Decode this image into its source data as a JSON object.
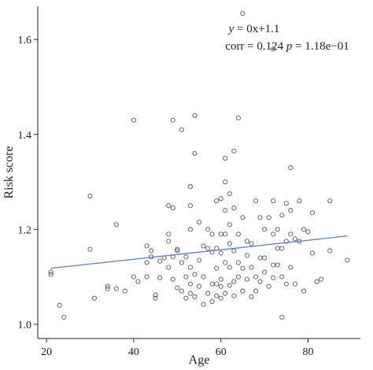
{
  "chart_data": {
    "type": "scatter",
    "xlabel": "Age",
    "ylabel": "Risk score",
    "xlim": [
      18,
      92
    ],
    "ylim": [
      0.97,
      1.67
    ],
    "xticks": [
      "20",
      "40",
      "60",
      "80"
    ],
    "yticks": [
      "1.0",
      "1.2",
      "1.4",
      "1.6"
    ],
    "grid": false,
    "colors": {
      "points": "#555555",
      "line": "#5b7fbf",
      "axis": "#222222"
    },
    "annotation": {
      "line1_y": "y",
      "line1_rest": " = 0x+1.1",
      "line2_corr": "corr = 0.124 ",
      "line2_p": "p",
      "line2_rest": " = 1.18e−01"
    },
    "fit_line": {
      "x": [
        21,
        89
      ],
      "y": [
        1.118,
        1.186
      ]
    },
    "points": [
      [
        21,
        1.105
      ],
      [
        21,
        1.11
      ],
      [
        23,
        1.04
      ],
      [
        24,
        1.015
      ],
      [
        30,
        1.27
      ],
      [
        30,
        1.158
      ],
      [
        31,
        1.055
      ],
      [
        34,
        1.08
      ],
      [
        34,
        1.075
      ],
      [
        36,
        1.21
      ],
      [
        36,
        1.075
      ],
      [
        38,
        1.07
      ],
      [
        40,
        1.43
      ],
      [
        40,
        1.1
      ],
      [
        41,
        1.09
      ],
      [
        43,
        1.165
      ],
      [
        43,
        1.13
      ],
      [
        43,
        1.1
      ],
      [
        44,
        1.142
      ],
      [
        44,
        1.155
      ],
      [
        45,
        1.062
      ],
      [
        45,
        1.055
      ],
      [
        46,
        1.133
      ],
      [
        46,
        1.098
      ],
      [
        47,
        1.14
      ],
      [
        48,
        1.19
      ],
      [
        48,
        1.175
      ],
      [
        48,
        1.25
      ],
      [
        48,
        1.12
      ],
      [
        49,
        1.43
      ],
      [
        49,
        1.245
      ],
      [
        49,
        1.142
      ],
      [
        49,
        1.095
      ],
      [
        50,
        1.158
      ],
      [
        50,
        1.155
      ],
      [
        50,
        1.077
      ],
      [
        51,
        1.13
      ],
      [
        51,
        1.41
      ],
      [
        51,
        1.07
      ],
      [
        52,
        1.142
      ],
      [
        52,
        1.1
      ],
      [
        52,
        1.055
      ],
      [
        53,
        1.29
      ],
      [
        53,
        1.25
      ],
      [
        53,
        1.2
      ],
      [
        53,
        1.12
      ],
      [
        53,
        1.085
      ],
      [
        53,
        1.065
      ],
      [
        54,
        1.44
      ],
      [
        54,
        1.36
      ],
      [
        54,
        1.105
      ],
      [
        54,
        1.058
      ],
      [
        55,
        1.215
      ],
      [
        55,
        1.135
      ],
      [
        55,
        1.08
      ],
      [
        56,
        1.165
      ],
      [
        56,
        1.1
      ],
      [
        56,
        1.042
      ],
      [
        57,
        1.2
      ],
      [
        57,
        1.16
      ],
      [
        57,
        1.065
      ],
      [
        58,
        1.152
      ],
      [
        58,
        1.085
      ],
      [
        58,
        1.048
      ],
      [
        59,
        1.26
      ],
      [
        59,
        1.16
      ],
      [
        59,
        1.118
      ],
      [
        59,
        1.085
      ],
      [
        59,
        1.06
      ],
      [
        60,
        1.265
      ],
      [
        60,
        1.19
      ],
      [
        60,
        1.15
      ],
      [
        60,
        1.095
      ],
      [
        60,
        1.08
      ],
      [
        60,
        1.055
      ],
      [
        61,
        1.35
      ],
      [
        61,
        1.3
      ],
      [
        61,
        1.24
      ],
      [
        61,
        1.19
      ],
      [
        61,
        1.13
      ],
      [
        61,
        1.065
      ],
      [
        62,
        1.275
      ],
      [
        62,
        1.17
      ],
      [
        62,
        1.12
      ],
      [
        62,
        1.082
      ],
      [
        63,
        1.365
      ],
      [
        63,
        1.245
      ],
      [
        63,
        1.155
      ],
      [
        63,
        1.09
      ],
      [
        63,
        1.06
      ],
      [
        64,
        1.435
      ],
      [
        64,
        1.19
      ],
      [
        64,
        1.13
      ],
      [
        64,
        1.1
      ],
      [
        65,
        1.655
      ],
      [
        65,
        1.225
      ],
      [
        65,
        1.118
      ],
      [
        65,
        1.07
      ],
      [
        66,
        1.175
      ],
      [
        66,
        1.095
      ],
      [
        67,
        1.17
      ],
      [
        67,
        1.12
      ],
      [
        67,
        1.058
      ],
      [
        68,
        1.26
      ],
      [
        68,
        1.1
      ],
      [
        68,
        1.07
      ],
      [
        69,
        1.225
      ],
      [
        69,
        1.14
      ],
      [
        69,
        1.09
      ],
      [
        70,
        1.2
      ],
      [
        70,
        1.14
      ],
      [
        71,
        1.225
      ],
      [
        71,
        1.08
      ],
      [
        72,
        1.58
      ],
      [
        72,
        1.26
      ],
      [
        72,
        1.19
      ],
      [
        72,
        1.125
      ],
      [
        72,
        1.098
      ],
      [
        73,
        1.2
      ],
      [
        73,
        1.16
      ],
      [
        73,
        1.125
      ],
      [
        74,
        1.23
      ],
      [
        74,
        1.16
      ],
      [
        74,
        1.1
      ],
      [
        74,
        1.015
      ],
      [
        75,
        1.255
      ],
      [
        75,
        1.175
      ],
      [
        75,
        1.085
      ],
      [
        76,
        1.33
      ],
      [
        76,
        1.24
      ],
      [
        76,
        1.19
      ],
      [
        76,
        1.12
      ],
      [
        77,
        1.18
      ],
      [
        77,
        1.085
      ],
      [
        78,
        1.26
      ],
      [
        78,
        1.175
      ],
      [
        79,
        1.2
      ],
      [
        79,
        1.07
      ],
      [
        80,
        1.195
      ],
      [
        81,
        1.235
      ],
      [
        81,
        1.15
      ],
      [
        82,
        1.09
      ],
      [
        83,
        1.095
      ],
      [
        85,
        1.26
      ],
      [
        85,
        1.155
      ],
      [
        89,
        1.135
      ],
      [
        62,
        1.21
      ],
      [
        58,
        1.19
      ],
      [
        70,
        1.11
      ],
      [
        66,
        1.145
      ]
    ]
  }
}
